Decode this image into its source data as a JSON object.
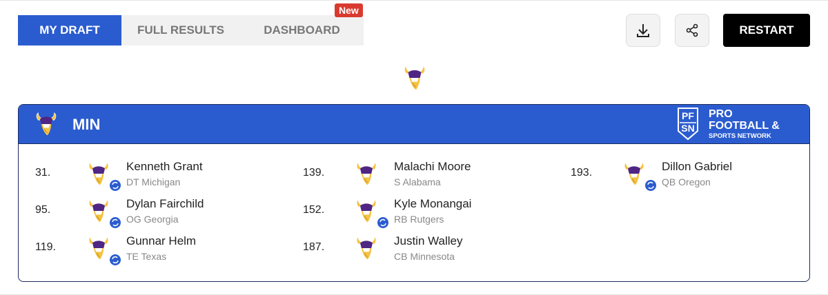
{
  "tabs": [
    "MY DRAFT",
    "FULL RESULTS",
    "DASHBOARD"
  ],
  "badge": "New",
  "restart_button": "RESTART",
  "team": {
    "abbr": "MIN"
  },
  "logo": {
    "mark_top": "PF",
    "mark_bottom": "SN",
    "line1": "PRO",
    "line2": "FOOTBALL &",
    "line3": "SPORTS NETWORK"
  },
  "picks": [
    {
      "number": "31.",
      "name": "Kenneth Grant",
      "detail": "DT Michigan",
      "traded": true
    },
    {
      "number": "95.",
      "name": "Dylan Fairchild",
      "detail": "OG Georgia",
      "traded": true
    },
    {
      "number": "119.",
      "name": "Gunnar Helm",
      "detail": "TE Texas",
      "traded": true
    },
    {
      "number": "139.",
      "name": "Malachi Moore",
      "detail": "S Alabama",
      "traded": false
    },
    {
      "number": "152.",
      "name": "Kyle Monangai",
      "detail": "RB Rutgers",
      "traded": true
    },
    {
      "number": "187.",
      "name": "Justin Walley",
      "detail": "CB Minnesota",
      "traded": false
    },
    {
      "number": "193.",
      "name": "Dillon Gabriel",
      "detail": "QB Oregon",
      "traded": true
    }
  ]
}
